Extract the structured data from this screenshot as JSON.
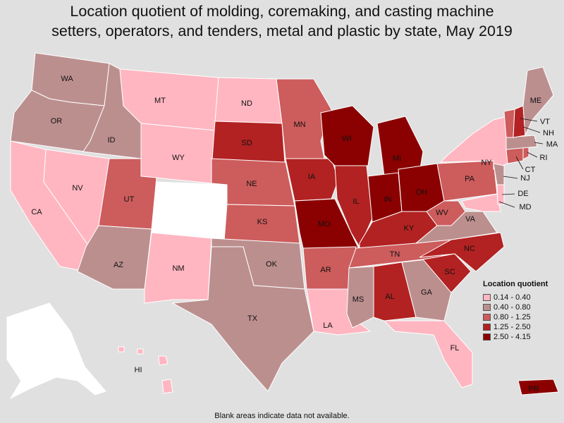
{
  "title_lines": [
    "Location quotient of molding, coremaking, and casting machine",
    "setters, operators, and tenders, metal and plastic by state, May 2019"
  ],
  "colors": {
    "c1": "#ffb6c1",
    "c2": "#bc8f8f",
    "c3": "#cd5c5c",
    "c4": "#b22222",
    "c5": "#8b0000",
    "nodata": "#ffffff"
  },
  "legend": {
    "title": "Location quotient",
    "items": [
      {
        "label": "0.14 - 0.40",
        "color": "#ffb6c1"
      },
      {
        "label": "0.40 - 0.80",
        "color": "#bc8f8f"
      },
      {
        "label": "0.80 - 1.25",
        "color": "#cd5c5c"
      },
      {
        "label": "1.25 - 2.50",
        "color": "#b22222"
      },
      {
        "label": "2.50 - 4.15",
        "color": "#8b0000"
      }
    ]
  },
  "state_labels": {
    "WA": "WA",
    "OR": "OR",
    "CA": "CA",
    "NV": "NV",
    "ID": "ID",
    "MT": "MT",
    "WY": "WY",
    "UT": "UT",
    "AZ": "AZ",
    "NM": "NM",
    "ND": "ND",
    "SD": "SD",
    "NE": "NE",
    "KS": "KS",
    "OK": "OK",
    "TX": "TX",
    "MN": "MN",
    "IA": "IA",
    "MO": "MO",
    "AR": "AR",
    "LA": "LA",
    "WI": "WI",
    "IL": "IL",
    "MI": "MI",
    "IN": "IN",
    "OH": "OH",
    "KY": "KY",
    "TN": "TN",
    "MS": "MS",
    "AL": "AL",
    "GA": "GA",
    "FL": "FL",
    "SC": "SC",
    "NC": "NC",
    "VA": "VA",
    "WV": "WV",
    "PA": "PA",
    "NY": "NY",
    "ME": "ME",
    "VT": "VT",
    "NH": "NH",
    "MA": "MA",
    "RI": "RI",
    "CT": "CT",
    "NJ": "NJ",
    "DE": "DE",
    "MD": "MD",
    "HI": "HI",
    "PR": "PR"
  },
  "footnote": "Blank areas indicate data not available."
}
